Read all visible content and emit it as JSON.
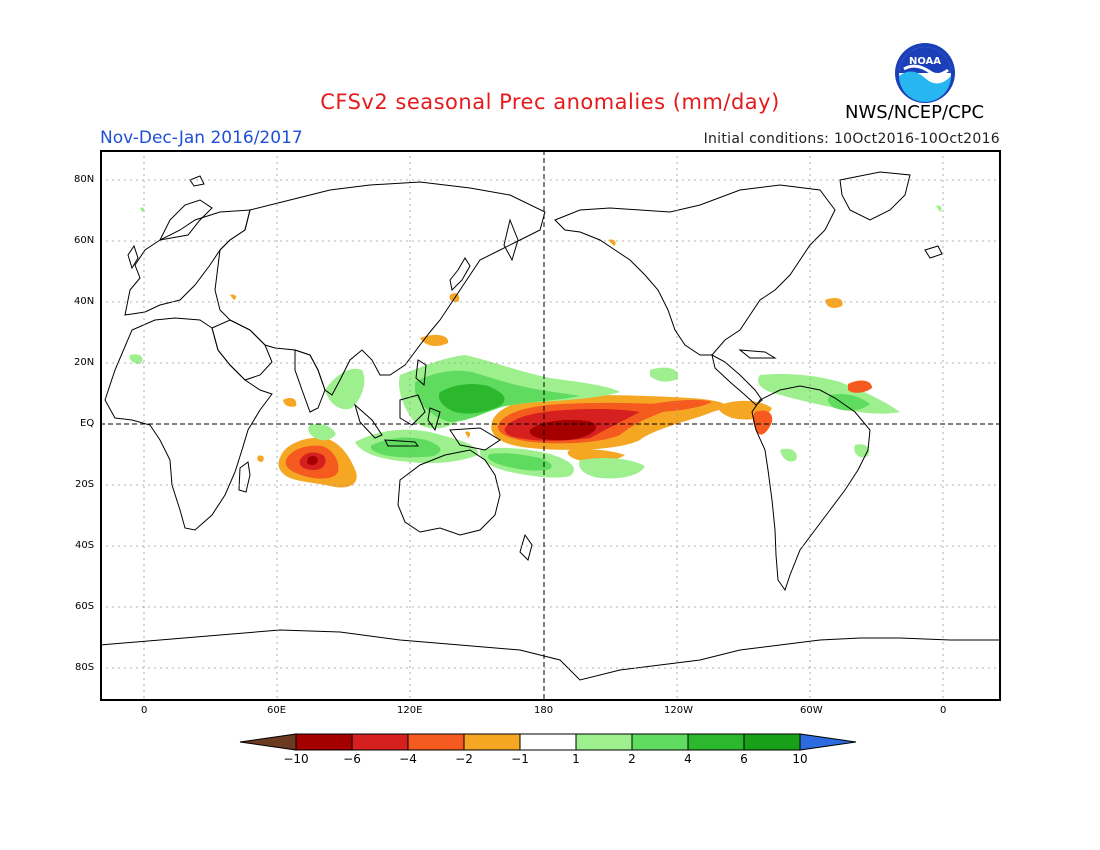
{
  "header": {
    "title": "CFSv2 seasonal Prec anomalies (mm/day)",
    "period": "Nov-Dec-Jan 2016/2017",
    "initial_conditions": "Initial conditions: 10Oct2016-10Oct2016",
    "agency": "NWS/NCEP/CPC",
    "logo_text": "NOAA"
  },
  "map": {
    "lat_labels": [
      "80N",
      "60N",
      "40N",
      "20N",
      "EQ",
      "20S",
      "40S",
      "60S",
      "80S"
    ],
    "lon_labels": [
      "0",
      "60E",
      "120E",
      "180",
      "120W",
      "60W",
      "0"
    ]
  },
  "colorbar": {
    "tick_labels": [
      "-10",
      "-6",
      "-4",
      "-2",
      "-1",
      "1",
      "2",
      "4",
      "6",
      "10"
    ],
    "colors": [
      "#6b3a1f",
      "#a50000",
      "#d61f1f",
      "#f55a1e",
      "#f5a623",
      "#ffffff",
      "#9ef08e",
      "#5fdc5f",
      "#2cb82c",
      "#18a018",
      "#2c6be0"
    ]
  }
}
